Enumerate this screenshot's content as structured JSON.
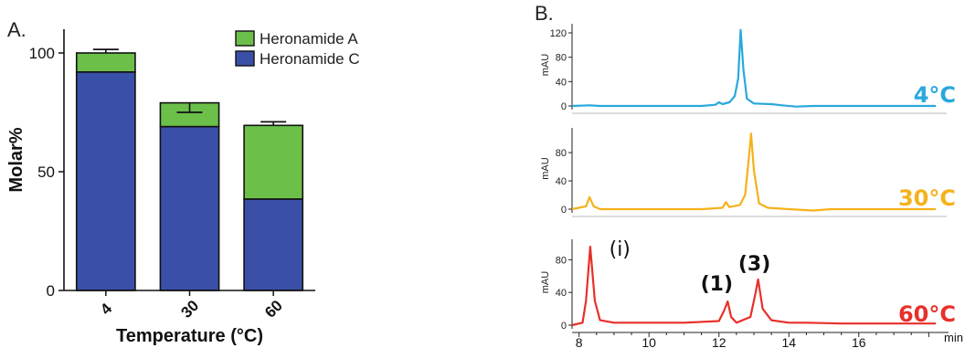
{
  "chart_data": [
    {
      "type": "bar",
      "panel": "A.",
      "stacked": true,
      "categories": [
        "4",
        "30",
        "60"
      ],
      "series": [
        {
          "name": "Heronamide C",
          "color": "#3a50a8",
          "values": [
            92,
            69,
            38.5
          ],
          "error_top": [
            93.5,
            70,
            41
          ]
        },
        {
          "name": "Heronamide A",
          "color": "#6cc04a",
          "values": [
            8,
            10,
            31
          ],
          "error_top": [
            101.5,
            75,
            71
          ]
        }
      ],
      "xlabel": "Temperature (°C)",
      "ylabel": "Molar%",
      "ylim": [
        0,
        110
      ],
      "yticks": [
        "0",
        "50",
        "100"
      ],
      "legend_position": "top-right",
      "grid": false
    },
    {
      "type": "line",
      "panel": "B.",
      "x_unit_label": "min",
      "x_ticks": [
        "8",
        "10",
        "12",
        "14",
        "16"
      ],
      "xlim": [
        7.8,
        18.2
      ],
      "traces": [
        {
          "label": "4°C",
          "color": "#29a8dd",
          "ylabel": "mAU",
          "yticks": [
            "0",
            "40",
            "80",
            "120"
          ],
          "ylim": [
            0,
            135
          ],
          "points": [
            [
              7.8,
              0
            ],
            [
              8.3,
              1
            ],
            [
              8.6,
              0
            ],
            [
              10,
              0
            ],
            [
              11.5,
              0
            ],
            [
              11.9,
              2
            ],
            [
              12.0,
              6
            ],
            [
              12.1,
              3
            ],
            [
              12.3,
              6
            ],
            [
              12.45,
              16
            ],
            [
              12.55,
              45
            ],
            [
              12.62,
              125
            ],
            [
              12.7,
              60
            ],
            [
              12.8,
              12
            ],
            [
              13.0,
              4
            ],
            [
              13.5,
              3
            ],
            [
              13.8,
              1
            ],
            [
              14.2,
              -1
            ],
            [
              14.7,
              0
            ],
            [
              15.2,
              0
            ],
            [
              16.5,
              0
            ],
            [
              18.2,
              0
            ]
          ]
        },
        {
          "label": "30°C",
          "color": "#f5b21a",
          "ylabel": "mAU",
          "yticks": [
            "0",
            "40",
            "80"
          ],
          "ylim": [
            0,
            115
          ],
          "points": [
            [
              7.8,
              0
            ],
            [
              8.2,
              4
            ],
            [
              8.3,
              17
            ],
            [
              8.42,
              4
            ],
            [
              8.6,
              0
            ],
            [
              10,
              0
            ],
            [
              11.5,
              0
            ],
            [
              12.1,
              2
            ],
            [
              12.2,
              10
            ],
            [
              12.3,
              3
            ],
            [
              12.6,
              6
            ],
            [
              12.75,
              20
            ],
            [
              12.85,
              70
            ],
            [
              12.92,
              107
            ],
            [
              13.0,
              55
            ],
            [
              13.15,
              8
            ],
            [
              13.4,
              2
            ],
            [
              14.0,
              0
            ],
            [
              14.7,
              -2
            ],
            [
              15.2,
              0
            ],
            [
              16.5,
              0
            ],
            [
              18.2,
              0
            ]
          ]
        },
        {
          "label": "60°C",
          "color": "#e8302a",
          "ylabel": "mAU",
          "yticks": [
            "0",
            "40",
            "80"
          ],
          "ylim": [
            0,
            105
          ],
          "points": [
            [
              7.8,
              0
            ],
            [
              8.1,
              3
            ],
            [
              8.2,
              30
            ],
            [
              8.32,
              96
            ],
            [
              8.45,
              30
            ],
            [
              8.6,
              6
            ],
            [
              9,
              3
            ],
            [
              10,
              3
            ],
            [
              11,
              3
            ],
            [
              12.0,
              5
            ],
            [
              12.15,
              18
            ],
            [
              12.25,
              29
            ],
            [
              12.35,
              10
            ],
            [
              12.5,
              3
            ],
            [
              12.9,
              10
            ],
            [
              13.05,
              40
            ],
            [
              13.12,
              56
            ],
            [
              13.25,
              20
            ],
            [
              13.5,
              6
            ],
            [
              14.0,
              3
            ],
            [
              14.5,
              3
            ],
            [
              15.5,
              2
            ],
            [
              16.5,
              2
            ],
            [
              18.2,
              2
            ]
          ]
        }
      ],
      "annotations": [
        {
          "text": "(i)",
          "x": 8.6,
          "y": 96,
          "trace": 2
        },
        {
          "text": "(1)",
          "x": 12.25,
          "y": 29,
          "trace": 2
        },
        {
          "text": "(3)",
          "x": 13.12,
          "y": 56,
          "trace": 2
        }
      ]
    }
  ]
}
